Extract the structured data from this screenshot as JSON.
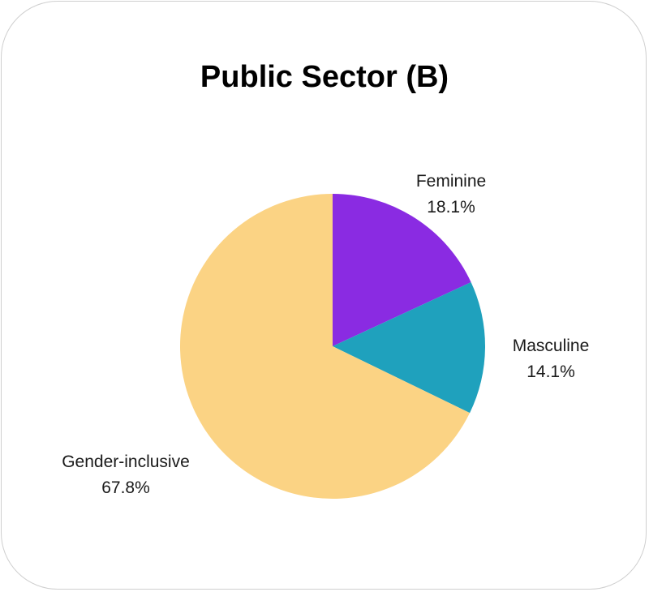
{
  "chart_data": {
    "type": "pie",
    "title": "Public Sector (B)",
    "slices": [
      {
        "name": "Feminine",
        "value": 18.1,
        "value_label": "18.1%",
        "color": "#8a2be2"
      },
      {
        "name": "Masculine",
        "value": 14.1,
        "value_label": "14.1%",
        "color": "#1fa1bd"
      },
      {
        "name": "Gender-inclusive",
        "value": 67.8,
        "value_label": "67.8%",
        "color": "#fbd384"
      }
    ],
    "start": "top",
    "direction": "clockwise",
    "legend": "none"
  }
}
